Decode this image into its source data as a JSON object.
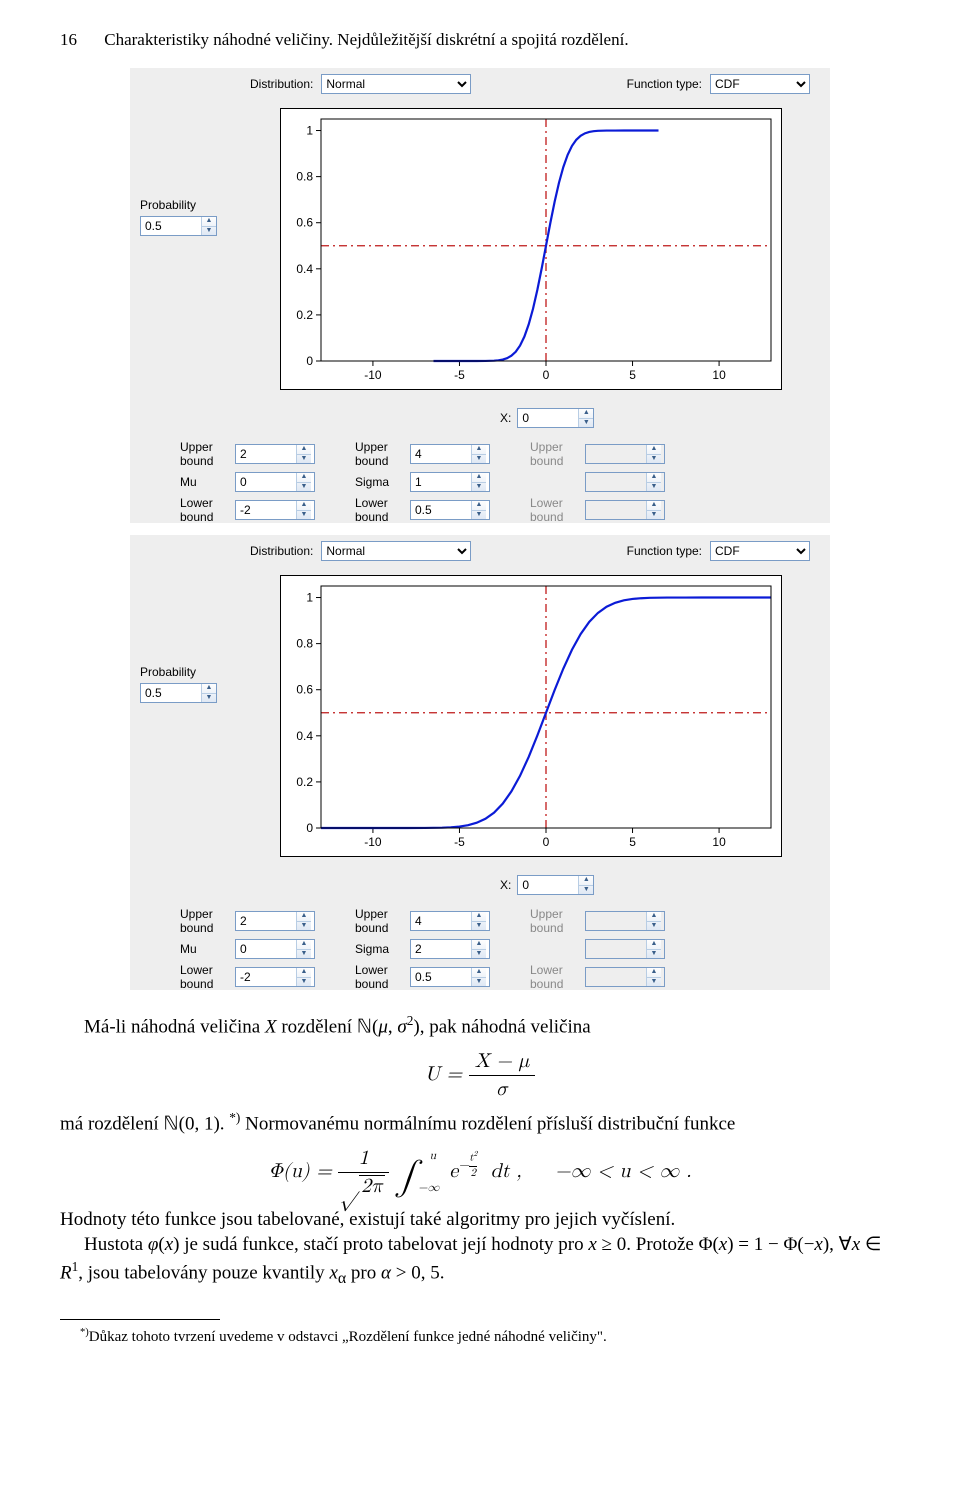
{
  "header": {
    "page_number": "16",
    "chapter_title": "Charakteristiky náhodné veličiny. Nejdůležitější diskrétní a spojitá rozdělení."
  },
  "ui_labels": {
    "distribution": "Distribution:",
    "function_type": "Function type:",
    "probability": "Probability",
    "x_label": "X:",
    "upper_bound": "Upper bound",
    "lower_bound": "Lower bound",
    "mu": "Mu",
    "sigma": "Sigma"
  },
  "ui_colors": {
    "panel_bg": "#eeeeee",
    "chart_bg": "#ffffff",
    "axis_color": "#000000",
    "curve_color": "#0b1bd6",
    "crosshair_color": "#bf1a1a",
    "dropdown_border": "#7a9cc6"
  },
  "dropdown": {
    "distribution_value": "Normal",
    "function_type_value": "CDF"
  },
  "chart": {
    "xlim": [
      -13,
      13
    ],
    "ylim": [
      0,
      1.05
    ],
    "xticks": [
      -10,
      -5,
      0,
      5,
      10
    ],
    "yticks": [
      0,
      0.2,
      0.4,
      0.6,
      0.8,
      1
    ],
    "crosshair_x": 0,
    "crosshair_y": 0.5,
    "line_width": 2.2,
    "dash_pattern": "8 4 2 4",
    "cdf_points": [
      [
        -13,
        0.0
      ],
      [
        -12,
        0.0
      ],
      [
        -11,
        0.0
      ],
      [
        -10,
        0.0
      ],
      [
        -9,
        0.0
      ],
      [
        -8,
        0.0001
      ],
      [
        -7,
        0.0002
      ],
      [
        -6,
        0.0013
      ],
      [
        -5.5,
        0.003
      ],
      [
        -5,
        0.0062
      ],
      [
        -4.5,
        0.0122
      ],
      [
        -4,
        0.0228
      ],
      [
        -3.5,
        0.0401
      ],
      [
        -3,
        0.0668
      ],
      [
        -2.5,
        0.1056
      ],
      [
        -2,
        0.1587
      ],
      [
        -1.5,
        0.2266
      ],
      [
        -1,
        0.3085
      ],
      [
        -0.5,
        0.4013
      ],
      [
        0,
        0.5
      ],
      [
        0.5,
        0.5987
      ],
      [
        1,
        0.6915
      ],
      [
        1.5,
        0.7734
      ],
      [
        2,
        0.8413
      ],
      [
        2.5,
        0.8944
      ],
      [
        3,
        0.9332
      ],
      [
        3.5,
        0.9599
      ],
      [
        4,
        0.9772
      ],
      [
        4.5,
        0.9878
      ],
      [
        5,
        0.9938
      ],
      [
        5.5,
        0.997
      ],
      [
        6,
        0.9987
      ],
      [
        7,
        0.9998
      ],
      [
        8,
        0.9999
      ],
      [
        9,
        1.0
      ],
      [
        10,
        1.0
      ],
      [
        11,
        1.0
      ],
      [
        12,
        1.0
      ],
      [
        13,
        1.0
      ]
    ]
  },
  "panel1": {
    "probability_value": "0.5",
    "x_value": "0",
    "col1": {
      "upper": "2",
      "mu": "0",
      "lower": "-2"
    },
    "col2": {
      "upper": "4",
      "sigma": "1",
      "lower": "0.5"
    },
    "col3": {
      "upper": "",
      "lower": ""
    }
  },
  "panel2": {
    "probability_value": "0.5",
    "x_value": "0",
    "col1": {
      "upper": "2",
      "mu": "0",
      "lower": "-2"
    },
    "col2": {
      "upper": "4",
      "sigma": "2",
      "lower": "0.5"
    },
    "col3": {
      "upper": "",
      "lower": ""
    }
  },
  "text": {
    "p1_a": "Má-li náhodná veličina ",
    "p1_b": " rozdělení ",
    "p1_c": ", pak náhodná veličina",
    "eq1": "U = (X − μ) / σ",
    "p2_a": "má rozdělení ",
    "p2_b": " Normovanému normálnímu rozdělení přísluší distribuční funkce",
    "eq2": "Φ(u) = (1 / √(2π)) ∫−∞u  e−t²/2 dt ,    −∞ < u < ∞ .",
    "p3": "Hodnoty této funkce jsou tabelované, existují také algoritmy pro jejich vyčíslení.",
    "p4_a": "Hustota ",
    "p4_b": " je sudá funkce, stačí proto tabelovat její hodnoty pro ",
    "p4_c": ". Protože ",
    "p4_d": ", jsou tabelovány pouze kvantily ",
    "p4_e": " pro ",
    "footnote": "Důkaz tohoto tvrzení uvedeme v odstavci „Rozdělení funkce jedné náhodné veličiny\"."
  }
}
